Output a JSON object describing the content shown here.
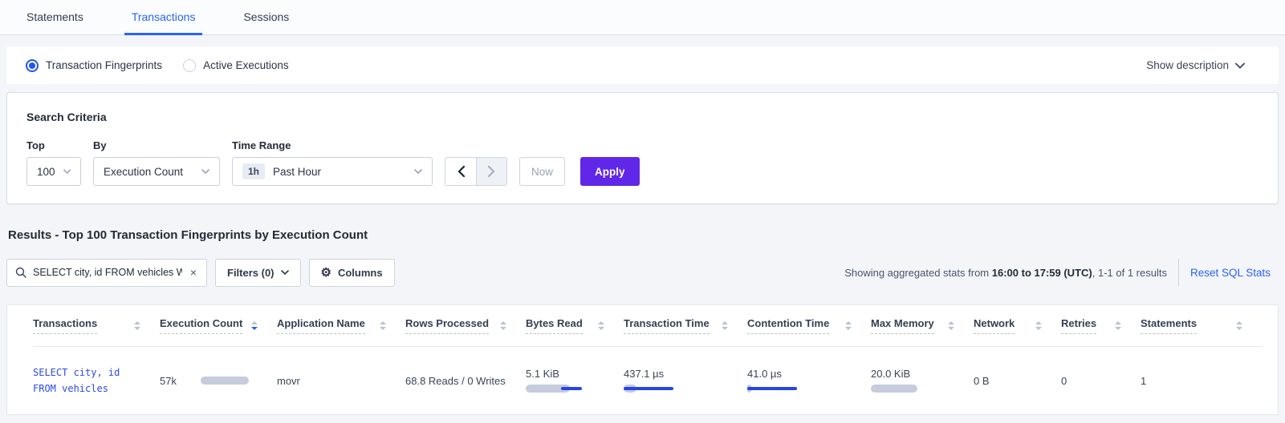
{
  "colors": {
    "accent_blue": "#2a63f5",
    "apply_purple": "#6127e8",
    "bar_grey": "#c6ccdc",
    "bar_blue": "#2545e9",
    "sql_blue": "#2c49e5"
  },
  "tabs": {
    "items": [
      {
        "label": "Statements",
        "active": false
      },
      {
        "label": "Transactions",
        "active": true
      },
      {
        "label": "Sessions",
        "active": false
      }
    ]
  },
  "view_toggle": {
    "options": [
      {
        "label": "Transaction Fingerprints",
        "selected": true
      },
      {
        "label": "Active Executions",
        "selected": false
      }
    ],
    "show_description": "Show description"
  },
  "search_criteria": {
    "title": "Search Criteria",
    "top": {
      "label": "Top",
      "value": "100"
    },
    "by": {
      "label": "By",
      "value": "Execution Count"
    },
    "time_range": {
      "label": "Time Range",
      "badge": "1h",
      "value": "Past Hour"
    },
    "now_label": "Now",
    "apply_label": "Apply"
  },
  "results": {
    "heading": "Results - Top 100 Transaction Fingerprints by Execution Count",
    "search_value": "SELECT city, id FROM vehicles WHE",
    "clear_glyph": "×",
    "filters_label": "Filters (0)",
    "columns_label": "Columns",
    "gear_glyph": "⚙",
    "summary_prefix": "Showing aggregated stats from ",
    "summary_range": "16:00 to 17:59 (UTC)",
    "summary_suffix": ", 1-1 of 1 results",
    "reset_link": "Reset SQL Stats"
  },
  "table": {
    "columns": [
      {
        "label": "Transactions",
        "sort": "none"
      },
      {
        "label": "Execution Count",
        "sort": "desc"
      },
      {
        "label": "Application Name",
        "sort": "none"
      },
      {
        "label": "Rows Processed",
        "sort": "none"
      },
      {
        "label": "Bytes Read",
        "sort": "none"
      },
      {
        "label": "Transaction Time",
        "sort": "none"
      },
      {
        "label": "Contention Time",
        "sort": "none"
      },
      {
        "label": "Max Memory",
        "sort": "none"
      },
      {
        "label": "Network",
        "sort": "none"
      },
      {
        "label": "Retries",
        "sort": "none"
      },
      {
        "label": "Statements",
        "sort": "none"
      }
    ],
    "row": {
      "transaction_line1": "SELECT city, id",
      "transaction_line2": "FROM vehicles",
      "execution_count": "57k",
      "application_name": "movr",
      "rows_processed": "68.8 Reads / 0 Writes",
      "bytes_read": "5.1 KiB",
      "transaction_time": "437.1 µs",
      "contention_time": "41.0 µs",
      "max_memory": "20.0 KiB",
      "network": "0 B",
      "retries": "0",
      "statements": "1",
      "bars": {
        "execution_count": {
          "grey": 60
        },
        "bytes_read": {
          "grey": 55,
          "blue": [
            44,
            70
          ]
        },
        "transaction_time": {
          "grey": 16,
          "blue": [
            0,
            62
          ]
        },
        "contention_time": {
          "grey": 5,
          "blue": [
            0,
            62
          ]
        },
        "max_memory": {
          "grey": 58
        }
      }
    }
  }
}
